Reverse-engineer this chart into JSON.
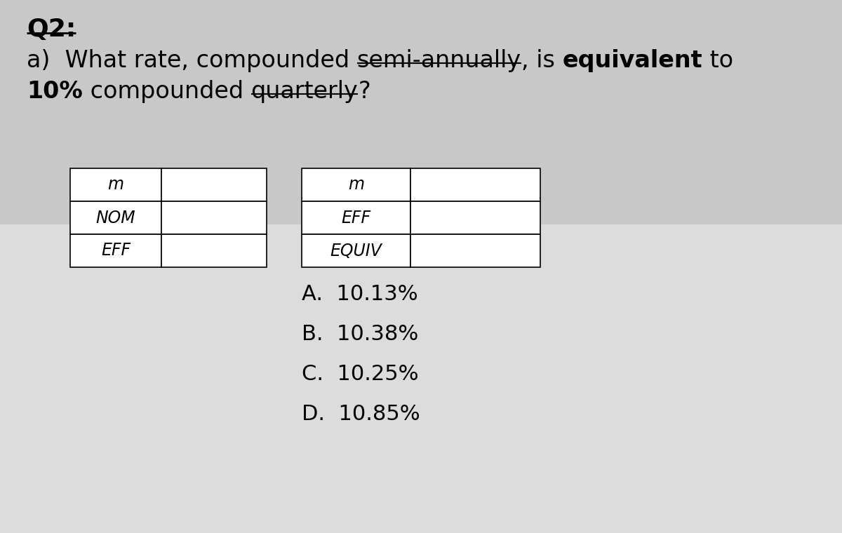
{
  "bg_color_top": "#c8c8c8",
  "bg_color_bottom": "#dcdcdc",
  "title": "Q2:",
  "line1_segments": [
    {
      "text": "a)  What rate, compounded ",
      "bold": false,
      "underline": false
    },
    {
      "text": "semi-annually",
      "bold": false,
      "underline": true
    },
    {
      "text": ", is ",
      "bold": false,
      "underline": false
    },
    {
      "text": "equivalent",
      "bold": true,
      "underline": false
    },
    {
      "text": " to",
      "bold": false,
      "underline": false
    }
  ],
  "line2_segments": [
    {
      "text": "10%",
      "bold": true,
      "underline": false
    },
    {
      "text": " compounded ",
      "bold": false,
      "underline": false
    },
    {
      "text": "quarterly",
      "bold": false,
      "underline": true
    },
    {
      "text": "?",
      "bold": false,
      "underline": false
    }
  ],
  "table1_rows": [
    "m",
    "NOM",
    "EFF"
  ],
  "table2_rows": [
    "m",
    "EFF",
    "EQUIV"
  ],
  "choices": [
    "A.  10.13%",
    "B.  10.38%",
    "C.  10.25%",
    "D.  10.85%"
  ],
  "font_size_title": 26,
  "font_size_question": 24,
  "font_size_table": 17,
  "font_size_choices": 22
}
